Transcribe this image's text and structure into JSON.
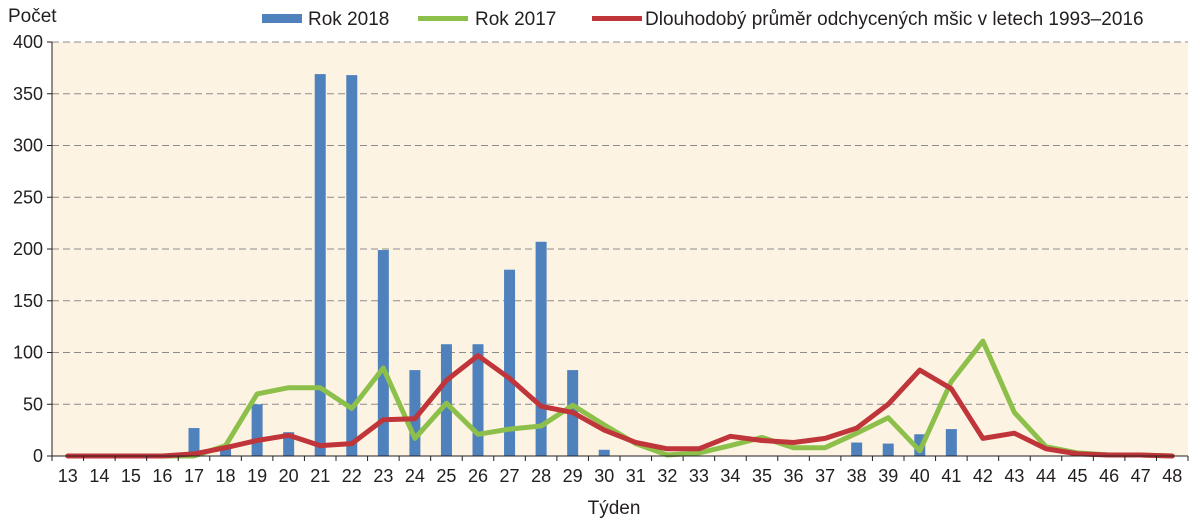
{
  "chart_data": {
    "type": "bar",
    "title": "",
    "ylabel": "Počet",
    "xlabel": "Týden",
    "ylim": [
      0,
      400
    ],
    "yticks": [
      0,
      50,
      100,
      150,
      200,
      250,
      300,
      350,
      400
    ],
    "grid": true,
    "legend_position": "top",
    "plot_background": "#fdf3e2",
    "categories": [
      "13",
      "14",
      "15",
      "16",
      "17",
      "18",
      "19",
      "20",
      "21",
      "22",
      "23",
      "24",
      "25",
      "26",
      "27",
      "28",
      "29",
      "30",
      "31",
      "32",
      "33",
      "34",
      "35",
      "36",
      "37",
      "38",
      "39",
      "40",
      "41",
      "42",
      "43",
      "44",
      "45",
      "46",
      "47",
      "48"
    ],
    "series": [
      {
        "name": "Rok 2018",
        "kind": "bar",
        "color": "#4f81bd",
        "values": [
          0,
          0,
          0,
          0,
          27,
          8,
          50,
          23,
          369,
          368,
          199,
          83,
          108,
          108,
          180,
          207,
          83,
          6,
          0,
          0,
          0,
          0,
          0,
          0,
          0,
          13,
          12,
          21,
          26,
          0,
          0,
          0,
          0,
          0,
          0,
          0
        ]
      },
      {
        "name": "Rok 2017",
        "kind": "line",
        "color": "#8dc04b",
        "values": [
          0,
          0,
          0,
          0,
          0,
          10,
          60,
          66,
          66,
          46,
          85,
          17,
          51,
          21,
          26,
          29,
          49,
          30,
          12,
          1,
          3,
          10,
          18,
          8,
          8,
          22,
          37,
          5,
          72,
          111,
          42,
          9,
          3,
          1,
          1,
          0
        ]
      },
      {
        "name": "Dlouhodobý průměr odchycených mšic v letech 1993–2016",
        "kind": "line",
        "color": "#c0353a",
        "values": [
          0,
          0,
          0,
          0,
          2,
          8,
          15,
          20,
          10,
          12,
          35,
          36,
          73,
          97,
          75,
          48,
          42,
          25,
          13,
          7,
          7,
          19,
          15,
          13,
          17,
          27,
          50,
          83,
          65,
          17,
          22,
          7,
          2,
          1,
          1,
          0
        ]
      }
    ]
  }
}
